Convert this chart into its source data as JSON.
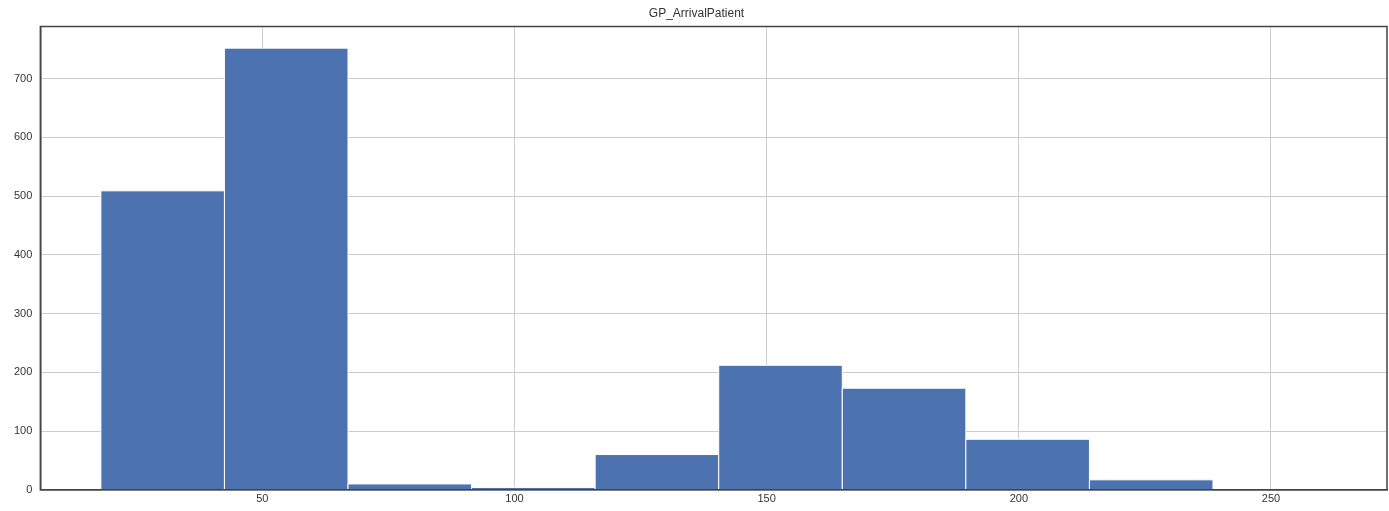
{
  "chart_data": {
    "type": "histogram",
    "title": "GP_ArrivalPatient",
    "bins": [
      18,
      42.5,
      67,
      91.5,
      116,
      140.5,
      165,
      189.5,
      214,
      238.5
    ],
    "values": [
      509,
      752,
      10,
      4,
      60,
      212,
      173,
      86,
      17
    ],
    "color": "#4c72b0",
    "xlim": [
      6,
      273
    ],
    "xticks": [
      50,
      100,
      150,
      200,
      250
    ],
    "ylim": [
      0,
      789
    ],
    "yticks": [
      0,
      100,
      200,
      300,
      400,
      500,
      600,
      700
    ],
    "grid": true,
    "legend": false
  }
}
